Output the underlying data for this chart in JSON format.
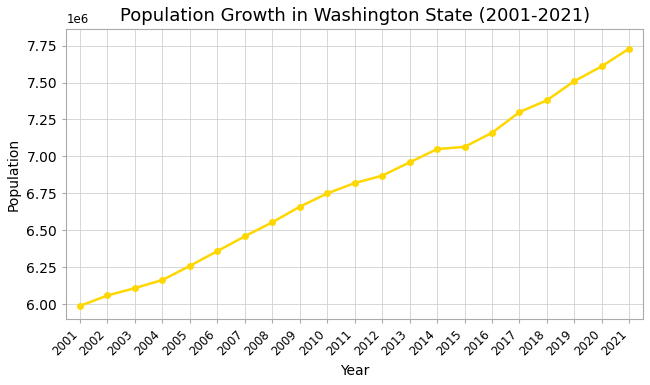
{
  "title": "Population Growth in Washington State (2001-2021)",
  "xlabel": "Year",
  "ylabel": "Population",
  "line_color": "#FFD700",
  "marker": "o",
  "marker_size": 4,
  "background_color": "#ffffff",
  "grid_color": "#d0d0d0",
  "years": [
    2001,
    2002,
    2003,
    2004,
    2005,
    2006,
    2007,
    2008,
    2009,
    2010,
    2011,
    2012,
    2013,
    2014,
    2015,
    2016,
    2017,
    2018,
    2019,
    2020,
    2021
  ],
  "population": [
    5990000,
    6060000,
    6110000,
    6165000,
    6260000,
    6360000,
    6460000,
    6555000,
    6660000,
    6750000,
    6820000,
    6870000,
    6960000,
    7050000,
    7065000,
    7160000,
    7300000,
    7380000,
    7510000,
    7610000,
    7730000
  ],
  "ylim": [
    5900000,
    7860000
  ],
  "xlim": [
    2000.5,
    2021.5
  ],
  "yticks": [
    6000000,
    6250000,
    6500000,
    6750000,
    7000000,
    7250000,
    7500000,
    7750000
  ],
  "title_fontsize": 13,
  "axis_label_fontsize": 10,
  "tick_fontsize": 8.5
}
